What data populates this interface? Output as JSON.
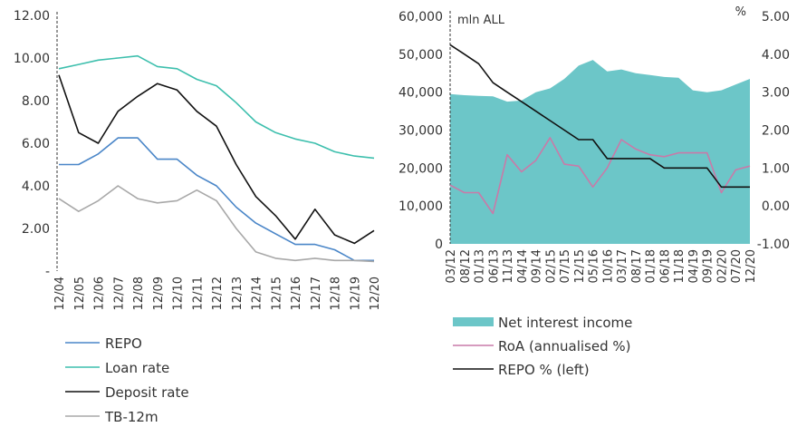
{
  "chart_data": [
    {
      "type": "line",
      "title": "",
      "categories": [
        "12/04",
        "12/05",
        "12/06",
        "12/07",
        "12/08",
        "12/09",
        "12/10",
        "12/11",
        "12/12",
        "12/13",
        "12/14",
        "12/15",
        "12/16",
        "12/17",
        "12/18",
        "12/19",
        "12/20"
      ],
      "ylim": [
        0,
        12
      ],
      "y_ticks": [
        "-",
        "2.00",
        "4.00",
        "6.00",
        "8.00",
        "10.00",
        "12.00"
      ],
      "legend_position": "bottom",
      "series": [
        {
          "name": "REPO",
          "color": "#4a86c8",
          "values": [
            5.0,
            5.0,
            5.5,
            6.25,
            6.25,
            5.25,
            5.25,
            4.5,
            4.0,
            3.0,
            2.25,
            1.75,
            1.25,
            1.25,
            1.0,
            0.5,
            0.5
          ]
        },
        {
          "name": "Loan rate",
          "color": "#3dbfad",
          "values": [
            9.5,
            9.7,
            9.9,
            10.0,
            10.1,
            9.6,
            9.5,
            9.0,
            8.7,
            7.9,
            7.0,
            6.5,
            6.2,
            6.0,
            5.6,
            5.4,
            5.3
          ]
        },
        {
          "name": "Deposit rate",
          "color": "#111111",
          "values": [
            9.2,
            6.5,
            6.0,
            7.5,
            8.2,
            8.8,
            8.5,
            7.5,
            6.8,
            5.0,
            3.5,
            2.6,
            1.5,
            2.9,
            1.7,
            1.3,
            1.9
          ]
        },
        {
          "name": "TB-12m",
          "color": "#a8a8a8",
          "values": [
            3.4,
            2.8,
            3.3,
            4.0,
            3.4,
            3.2,
            3.3,
            3.8,
            3.3,
            2.0,
            0.9,
            0.6,
            0.5,
            0.6,
            0.5,
            0.5,
            0.45
          ]
        }
      ]
    },
    {
      "type": "area",
      "title": "",
      "x": [
        "03/12",
        "08/12",
        "01/13",
        "06/13",
        "11/13",
        "04/14",
        "09/14",
        "02/15",
        "07/15",
        "12/15",
        "05/16",
        "10/16",
        "03/17",
        "08/17",
        "01/18",
        "06/18",
        "11/18",
        "04/19",
        "09/19",
        "02/20",
        "07/20",
        "12/20"
      ],
      "y_left_label": "mln ALL",
      "y_right_label": "%",
      "y_left_ticks": [
        "0",
        "10,000",
        "20,000",
        "30,000",
        "40,000",
        "50,000",
        "60,000"
      ],
      "y_right_ticks": [
        "-1.00",
        "0.00",
        "1.00",
        "2.00",
        "3.00",
        "4.00",
        "5.00"
      ],
      "ylim_left": [
        0,
        60000
      ],
      "ylim_right": [
        -1,
        5
      ],
      "legend_position": "bottom",
      "series": [
        {
          "name": "Net interest income",
          "axis": "left",
          "color": "#6cc6c8",
          "values": [
            39500,
            39200,
            39000,
            38900,
            37500,
            37800,
            40000,
            41000,
            43500,
            47000,
            48500,
            45500,
            46000,
            45000,
            44500,
            44000,
            43800,
            40500,
            40000,
            40500,
            42000,
            43500
          ]
        },
        {
          "name": "RoA (annualised %)",
          "axis": "right",
          "color": "#c97aa8",
          "values": [
            0.55,
            0.35,
            0.35,
            -0.2,
            1.35,
            0.9,
            1.2,
            1.8,
            1.1,
            1.05,
            0.5,
            1.0,
            1.75,
            1.5,
            1.35,
            1.3,
            1.4,
            1.4,
            1.4,
            0.35,
            0.95,
            1.05
          ]
        },
        {
          "name": "REPO % (left)",
          "axis": "right",
          "color": "#111111",
          "values": [
            4.25,
            4.0,
            3.75,
            3.25,
            3.0,
            2.75,
            2.5,
            2.25,
            2.0,
            1.75,
            1.75,
            1.25,
            1.25,
            1.25,
            1.25,
            1.0,
            1.0,
            1.0,
            1.0,
            0.5,
            0.5,
            0.5
          ]
        }
      ]
    }
  ]
}
